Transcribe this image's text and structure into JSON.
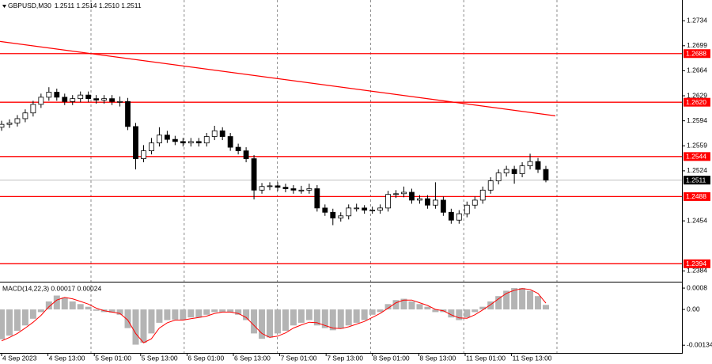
{
  "chart_data": [
    {
      "type": "candlestick",
      "title": "GBPUSD,M30",
      "ohlc_text": "1.2511 1.2514 1.2510 1.2511",
      "open": [
        1.2585,
        1.2589,
        1.2591,
        1.2597,
        1.2605,
        1.2617,
        1.2627,
        1.2634,
        1.2627,
        1.2621,
        1.2625,
        1.263,
        1.2625,
        1.2623,
        1.2625,
        1.2621,
        1.2621,
        1.2586,
        1.2541,
        1.2552,
        1.2563,
        1.2574,
        1.2568,
        1.2565,
        1.2563,
        1.2565,
        1.2563,
        1.2572,
        1.258,
        1.2572,
        1.2557,
        1.2552,
        1.2541,
        1.2497,
        1.2502,
        1.2503,
        1.2501,
        1.2499,
        1.2497,
        1.2497,
        1.2499,
        1.2472,
        1.2466,
        1.2458,
        1.2461,
        1.2472,
        1.2472,
        1.2469,
        1.2469,
        1.2472,
        1.2491,
        1.2492,
        1.2494,
        1.2483,
        1.2485,
        1.2476,
        1.2483,
        1.2466,
        1.2455,
        1.2464,
        1.2476,
        1.2483,
        1.2497,
        1.251,
        1.2521,
        1.2526,
        1.252,
        1.2531,
        1.2537,
        1.2526
      ],
      "high": [
        1.2594,
        1.2596,
        1.2602,
        1.261,
        1.2622,
        1.2632,
        1.2641,
        1.2639,
        1.2632,
        1.263,
        1.2635,
        1.2635,
        1.263,
        1.263,
        1.263,
        1.2628,
        1.2626,
        1.2591,
        1.256,
        1.257,
        1.2585,
        1.258,
        1.2573,
        1.257,
        1.257,
        1.257,
        1.2577,
        1.2587,
        1.2585,
        1.2577,
        1.2562,
        1.2557,
        1.2546,
        1.2507,
        1.2508,
        1.2508,
        1.2506,
        1.2504,
        1.2503,
        1.2506,
        1.2504,
        1.2477,
        1.2471,
        1.2466,
        1.2477,
        1.2478,
        1.2476,
        1.2474,
        1.2477,
        1.2496,
        1.2497,
        1.2502,
        1.2499,
        1.249,
        1.249,
        1.2508,
        1.2488,
        1.2471,
        1.2469,
        1.2481,
        1.2488,
        1.2502,
        1.2515,
        1.2526,
        1.2531,
        1.2531,
        1.2536,
        1.2548,
        1.2542,
        1.2531
      ],
      "low": [
        1.258,
        1.2584,
        1.2586,
        1.2592,
        1.26,
        1.2612,
        1.2622,
        1.2622,
        1.2616,
        1.2616,
        1.262,
        1.262,
        1.2618,
        1.2618,
        1.2616,
        1.2614,
        1.2581,
        1.2526,
        1.2536,
        1.2547,
        1.2558,
        1.2563,
        1.256,
        1.2558,
        1.2558,
        1.2558,
        1.2558,
        1.2567,
        1.2567,
        1.2552,
        1.2547,
        1.2536,
        1.2484,
        1.2492,
        1.2497,
        1.2496,
        1.2494,
        1.2492,
        1.2492,
        1.2492,
        1.2467,
        1.2461,
        1.2448,
        1.2453,
        1.2456,
        1.2467,
        1.2464,
        1.2464,
        1.2464,
        1.2467,
        1.2486,
        1.2487,
        1.2478,
        1.2478,
        1.2471,
        1.2471,
        1.2461,
        1.245,
        1.245,
        1.2459,
        1.2471,
        1.2478,
        1.2492,
        1.2505,
        1.2516,
        1.2506,
        1.2515,
        1.2526,
        1.2521,
        1.2508
      ],
      "close": [
        1.2589,
        1.2591,
        1.2597,
        1.2605,
        1.2617,
        1.2627,
        1.2634,
        1.2627,
        1.2621,
        1.2625,
        1.263,
        1.2625,
        1.2623,
        1.2625,
        1.2621,
        1.2621,
        1.2586,
        1.2541,
        1.2552,
        1.2563,
        1.2574,
        1.2568,
        1.2565,
        1.2563,
        1.2565,
        1.2563,
        1.2572,
        1.258,
        1.2572,
        1.2557,
        1.2552,
        1.2541,
        1.2497,
        1.2502,
        1.2503,
        1.2501,
        1.2499,
        1.2497,
        1.2497,
        1.2499,
        1.2472,
        1.2466,
        1.2458,
        1.2461,
        1.2472,
        1.2472,
        1.2469,
        1.2469,
        1.2472,
        1.2491,
        1.2492,
        1.2494,
        1.2483,
        1.2485,
        1.2476,
        1.2483,
        1.2466,
        1.2455,
        1.2464,
        1.2476,
        1.2483,
        1.2497,
        1.251,
        1.2521,
        1.2526,
        1.252,
        1.2531,
        1.2537,
        1.2526,
        1.2511
      ],
      "ylim": [
        1.237,
        1.2763
      ],
      "yticks": [
        1.2734,
        1.2699,
        1.2664,
        1.2629,
        1.2594,
        1.2559,
        1.2524,
        1.2454,
        1.2384
      ],
      "levels": [
        {
          "value": 1.2688,
          "label": "1.2688"
        },
        {
          "value": 1.262,
          "label": "1.2620"
        },
        {
          "value": 1.2544,
          "label": "1.2544"
        },
        {
          "value": 1.2488,
          "label": "1.2488"
        },
        {
          "value": 1.2394,
          "label": "1.2394"
        }
      ],
      "level_color": "#ff0000",
      "current_price": 1.2511,
      "trendline": [
        1.2705,
        1.2601
      ],
      "grid": true,
      "x_labels": [
        "4 Sep 2023",
        "4 Sep 13:00",
        "5 Sep 01:00",
        "5 Sep 13:00",
        "6 Sep 01:00",
        "6 Sep 13:00",
        "7 Sep 01:00",
        "7 Sep 13:00",
        "8 Sep 01:00",
        "8 Sep 13:00",
        "11 Sep 01:00",
        "11 Sep 13:00"
      ]
    },
    {
      "type": "macd",
      "title": "MACD(14,22,3) 0.00017 0.00024",
      "histogram": [
        -0.00112,
        -0.00098,
        -0.0008,
        -0.0006,
        -0.00035,
        -0.0001,
        0.0003,
        0.00052,
        0.00045,
        0.0003,
        0.0002,
        0.0001,
        -5e-05,
        -0.0001,
        -0.00012,
        -0.0002,
        -0.0007,
        -0.00132,
        -0.00125,
        -0.0009,
        -0.0005,
        -0.0004,
        -0.00038,
        -0.0004,
        -0.0003,
        -0.0003,
        -0.0002,
        -0.0001,
        -0.0001,
        -0.0001,
        -0.0002,
        -0.0004,
        -0.0009,
        -0.0011,
        -0.00105,
        -0.0009,
        -0.0008,
        -0.0006,
        -0.0005,
        -0.0004,
        -0.0006,
        -0.0007,
        -0.00078,
        -0.00072,
        -0.0006,
        -0.0005,
        -0.0004,
        -0.0002,
        -0.0001,
        0.0002,
        0.00035,
        0.0004,
        0.0003,
        0.0002,
        0.0001,
        -0.0001,
        -0.0001,
        -0.0003,
        -0.0004,
        -0.0003,
        -0.0001,
        0.0001,
        0.0003,
        0.0005,
        0.0007,
        0.0008,
        0.0008,
        0.0007,
        0.0005,
        0.00017
      ],
      "signal": [
        -0.00118,
        -0.00105,
        -0.0009,
        -0.0007,
        -0.00048,
        -0.00022,
        0.0001,
        0.00035,
        0.00045,
        0.0004,
        0.0003,
        0.0002,
        5e-05,
        -5e-05,
        -0.0001,
        -0.00015,
        -0.0004,
        -0.0009,
        -0.00125,
        -0.0011,
        -0.0007,
        -0.0005,
        -0.0004,
        -0.0004,
        -0.00035,
        -0.0003,
        -0.00025,
        -0.00015,
        -0.0001,
        -0.0001,
        -0.00015,
        -0.0003,
        -0.0006,
        -0.0009,
        -0.00105,
        -0.001,
        -0.00088,
        -0.0007,
        -0.00058,
        -0.00048,
        -0.0005,
        -0.0006,
        -0.0007,
        -0.00072,
        -0.00065,
        -0.00055,
        -0.00045,
        -0.0003,
        -0.00015,
        5e-05,
        0.00025,
        0.00035,
        0.00035,
        0.00025,
        0.00015,
        0,
        -5e-05,
        -0.0002,
        -0.00032,
        -0.00033,
        -0.0002,
        -2e-05,
        0.00018,
        0.0004,
        0.0006,
        0.00072,
        0.00078,
        0.00075,
        0.0006,
        0.00024
      ],
      "ylim": [
        -0.00163,
        0.00098
      ],
      "yticks": [
        0.0008,
        {
          "value": 0,
          "label": "0.00"
        },
        {
          "value": -0.00134,
          "label": "-0.00134"
        }
      ],
      "histogram_color": "#b4b4b4",
      "signal_color": "#ff0000"
    }
  ]
}
